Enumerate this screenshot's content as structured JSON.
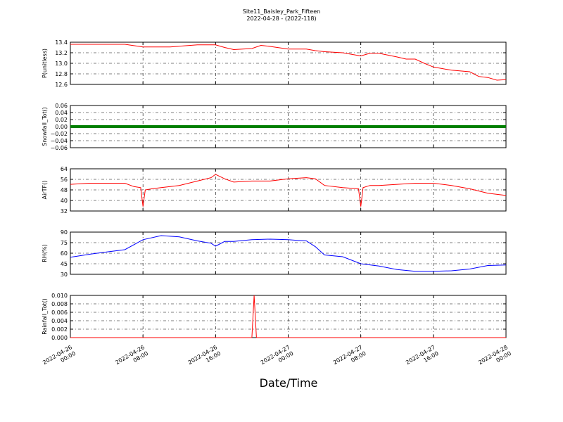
{
  "figure": {
    "title": "Site11_Baisley_Park_Fifteen",
    "subtitle": "2022-04-28 - (2022-118)",
    "xlabel": "Date/Time"
  },
  "x_ticks": [
    {
      "line1": "2022-04-26",
      "line2": "00:00"
    },
    {
      "line1": "2022-04-26",
      "line2": "08:00"
    },
    {
      "line1": "2022-04-26",
      "line2": "16:00"
    },
    {
      "line1": "2022-04-27",
      "line2": "00:00"
    },
    {
      "line1": "2022-04-27",
      "line2": "08:00"
    },
    {
      "line1": "2022-04-27",
      "line2": "16:00"
    },
    {
      "line1": "2022-04-28",
      "line2": "00:00"
    }
  ],
  "colors": {
    "red": "#ff0000",
    "green": "#007f00",
    "blue": "#0000ff"
  },
  "chart_data": [
    {
      "type": "line",
      "ylabel": "P(unitless)",
      "ylim": [
        12.6,
        13.4
      ],
      "yticks": [
        "12.6",
        "12.8",
        "13.0",
        "13.2",
        "13.4"
      ],
      "xlim": [
        "2022-04-26 00:00",
        "2022-04-28 00:00"
      ],
      "grid": true,
      "series": [
        {
          "color": "#ff0000",
          "x": [
            "2022-04-26 00:00",
            "2022-04-26 06:00",
            "2022-04-26 08:00",
            "2022-04-26 11:00",
            "2022-04-26 14:00",
            "2022-04-26 16:00",
            "2022-04-26 17:00",
            "2022-04-26 18:00",
            "2022-04-26 20:00",
            "2022-04-26 21:00",
            "2022-04-26 22:00",
            "2022-04-27 00:00",
            "2022-04-27 02:00",
            "2022-04-27 03:00",
            "2022-04-27 04:00",
            "2022-04-27 06:00",
            "2022-04-27 08:00",
            "2022-04-27 09:00",
            "2022-04-27 10:00",
            "2022-04-27 12:00",
            "2022-04-27 13:00",
            "2022-04-27 14:00",
            "2022-04-27 15:00",
            "2022-04-27 16:00",
            "2022-04-27 18:00",
            "2022-04-27 20:00",
            "2022-04-27 21:00",
            "2022-04-27 22:00",
            "2022-04-27 23:00",
            "2022-04-28 00:00"
          ],
          "y": [
            13.36,
            13.36,
            13.31,
            13.31,
            13.35,
            13.35,
            13.3,
            13.26,
            13.28,
            13.34,
            13.32,
            13.27,
            13.27,
            13.24,
            13.22,
            13.2,
            13.14,
            13.19,
            13.19,
            13.12,
            13.08,
            13.08,
            13.0,
            12.93,
            12.87,
            12.84,
            12.75,
            12.73,
            12.68,
            12.69
          ]
        }
      ]
    },
    {
      "type": "line",
      "ylabel": "Snowfall_Tot()",
      "ylim": [
        -0.06,
        0.06
      ],
      "yticks": [
        "−0.06",
        "−0.04",
        "−0.02",
        "0.00",
        "0.02",
        "0.04",
        "0.06"
      ],
      "xlim": [
        "2022-04-26 00:00",
        "2022-04-28 00:00"
      ],
      "grid": true,
      "series": [
        {
          "color": "#007f00",
          "x": [
            "2022-04-26 00:00",
            "2022-04-28 00:00"
          ],
          "y": [
            0.0,
            0.0
          ]
        }
      ]
    },
    {
      "type": "line",
      "ylabel": "AirTF()",
      "ylim": [
        30,
        68
      ],
      "yticks": [
        "32",
        "40",
        "48",
        "56",
        "64"
      ],
      "xlim": [
        "2022-04-26 00:00",
        "2022-04-28 00:00"
      ],
      "grid": true,
      "series": [
        {
          "color": "#ff0000",
          "x": [
            "2022-04-26 00:00",
            "2022-04-26 02:00",
            "2022-04-26 04:00",
            "2022-04-26 06:00",
            "2022-04-26 07:00",
            "2022-04-26 07:45",
            "2022-04-26 08:00",
            "2022-04-26 08:15",
            "2022-04-26 09:00",
            "2022-04-26 10:00",
            "2022-04-26 12:00",
            "2022-04-26 14:00",
            "2022-04-26 15:30",
            "2022-04-26 16:00",
            "2022-04-26 17:00",
            "2022-04-26 18:00",
            "2022-04-26 20:00",
            "2022-04-26 22:00",
            "2022-04-27 00:00",
            "2022-04-27 02:00",
            "2022-04-27 03:00",
            "2022-04-27 04:00",
            "2022-04-27 06:00",
            "2022-04-27 07:45",
            "2022-04-27 08:00",
            "2022-04-27 08:15",
            "2022-04-27 09:00",
            "2022-04-27 10:00",
            "2022-04-27 12:00",
            "2022-04-27 14:00",
            "2022-04-27 16:00",
            "2022-04-27 18:00",
            "2022-04-27 20:00",
            "2022-04-27 22:00",
            "2022-04-28 00:00"
          ],
          "y": [
            54,
            55,
            55,
            55,
            52,
            51,
            34,
            49,
            50,
            51,
            53,
            57,
            60,
            63,
            59,
            56,
            57,
            57,
            59,
            60,
            59,
            53,
            51,
            50,
            34,
            51,
            53,
            53,
            54,
            55,
            55,
            53,
            50,
            46,
            44
          ]
        }
      ]
    },
    {
      "type": "line",
      "ylabel": "RH(%)",
      "ylim": [
        23,
        95
      ],
      "yticks": [
        "30",
        "45",
        "60",
        "75",
        "90"
      ],
      "xlim": [
        "2022-04-26 00:00",
        "2022-04-28 00:00"
      ],
      "grid": true,
      "series": [
        {
          "color": "#0000ff",
          "x": [
            "2022-04-26 00:00",
            "2022-04-26 02:00",
            "2022-04-26 04:00",
            "2022-04-26 06:00",
            "2022-04-26 08:00",
            "2022-04-26 10:00",
            "2022-04-26 12:00",
            "2022-04-26 14:00",
            "2022-04-26 15:30",
            "2022-04-26 16:00",
            "2022-04-26 17:00",
            "2022-04-26 18:00",
            "2022-04-26 20:00",
            "2022-04-26 22:00",
            "2022-04-27 00:00",
            "2022-04-27 01:00",
            "2022-04-27 02:00",
            "2022-04-27 03:00",
            "2022-04-27 04:00",
            "2022-04-27 06:00",
            "2022-04-27 08:00",
            "2022-04-27 10:00",
            "2022-04-27 12:00",
            "2022-04-27 14:00",
            "2022-04-27 16:00",
            "2022-04-27 18:00",
            "2022-04-27 20:00",
            "2022-04-27 22:00",
            "2022-04-28 00:00"
          ],
          "y": [
            52,
            57,
            61,
            65,
            82,
            89,
            87,
            80,
            76,
            71,
            79,
            79,
            82,
            83,
            82,
            81,
            80,
            70,
            56,
            53,
            41,
            37,
            31,
            28,
            28,
            29,
            32,
            38,
            39
          ]
        }
      ]
    },
    {
      "type": "line",
      "ylabel": "Rainfall_Tot()",
      "ylim": [
        0.0,
        0.01
      ],
      "yticks": [
        "0.000",
        "0.002",
        "0.004",
        "0.006",
        "0.008",
        "0.010"
      ],
      "xlim": [
        "2022-04-26 00:00",
        "2022-04-28 00:00"
      ],
      "grid": true,
      "series": [
        {
          "color": "#ff0000",
          "x": [
            "2022-04-26 00:00",
            "2022-04-26 20:00",
            "2022-04-26 20:15",
            "2022-04-26 20:30",
            "2022-04-28 00:00"
          ],
          "y": [
            0.0,
            0.0,
            0.01,
            0.0,
            0.0
          ]
        }
      ]
    }
  ]
}
